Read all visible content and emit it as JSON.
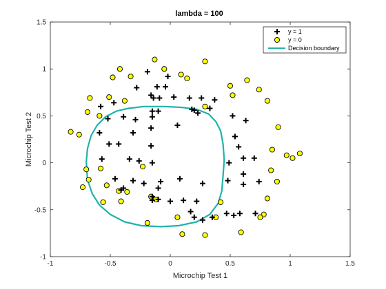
{
  "chart_data": {
    "type": "scatter",
    "title": "lambda = 100",
    "xlabel": "Microchip Test 1",
    "ylabel": "Microchip Test 2",
    "xlim": [
      -1,
      1.5
    ],
    "ylim": [
      -1,
      1.5
    ],
    "xticks": [
      "-1",
      "-0.5",
      "0",
      "0.5",
      "1",
      "1.5"
    ],
    "yticks": [
      "-1",
      "-0.5",
      "0",
      "0.5",
      "1",
      "1.5"
    ],
    "grid": false,
    "legend_position": "top-right",
    "colors": {
      "positive_marker": "#000000",
      "negative_fill": "#ffff00",
      "negative_edge": "#000000",
      "boundary": "#1fb3ab"
    },
    "series": [
      {
        "name": "y = 1",
        "marker": "plus",
        "points": [
          [
            -0.19,
            0.97
          ],
          [
            -0.02,
            0.92
          ],
          [
            -0.28,
            0.8
          ],
          [
            -0.11,
            0.81
          ],
          [
            -0.04,
            0.81
          ],
          [
            -0.58,
            0.6
          ],
          [
            -0.47,
            0.64
          ],
          [
            -0.14,
            0.69
          ],
          [
            -0.16,
            0.72
          ],
          [
            -0.09,
            0.69
          ],
          [
            0.03,
            0.7
          ],
          [
            0.16,
            0.69
          ],
          [
            0.26,
            0.69
          ],
          [
            0.37,
            0.67
          ],
          [
            0.33,
            0.58
          ],
          [
            0.18,
            0.57
          ],
          [
            0.2,
            0.56
          ],
          [
            0.23,
            0.53
          ],
          [
            -0.15,
            0.55
          ],
          [
            -0.1,
            0.55
          ],
          [
            -0.52,
            0.47
          ],
          [
            -0.39,
            0.49
          ],
          [
            -0.29,
            0.46
          ],
          [
            -0.15,
            0.49
          ],
          [
            0.06,
            0.4
          ],
          [
            -0.59,
            0.32
          ],
          [
            -0.31,
            0.32
          ],
          [
            -0.16,
            0.37
          ],
          [
            0.52,
            0.5
          ],
          [
            0.63,
            0.45
          ],
          [
            0.54,
            0.28
          ],
          [
            0.57,
            0.17
          ],
          [
            -0.51,
            0.2
          ],
          [
            -0.43,
            0.2
          ],
          [
            -0.16,
            0.18
          ],
          [
            -0.57,
            0.04
          ],
          [
            -0.34,
            0.04
          ],
          [
            -0.26,
            0.02
          ],
          [
            -0.15,
            0.0
          ],
          [
            0.49,
            0.0
          ],
          [
            0.61,
            0.05
          ],
          [
            0.7,
            0.05
          ],
          [
            -0.46,
            -0.17
          ],
          [
            -0.31,
            -0.19
          ],
          [
            -0.22,
            -0.22
          ],
          [
            -0.08,
            -0.2
          ],
          [
            0.08,
            -0.17
          ],
          [
            0.27,
            -0.22
          ],
          [
            0.48,
            -0.19
          ],
          [
            0.61,
            -0.12
          ],
          [
            0.61,
            -0.23
          ],
          [
            0.74,
            -0.2
          ],
          [
            -0.39,
            -0.27
          ],
          [
            -0.41,
            -0.29
          ],
          [
            -0.1,
            -0.27
          ],
          [
            -0.15,
            -0.36
          ],
          [
            -0.15,
            -0.4
          ],
          [
            -0.1,
            -0.39
          ],
          [
            0.0,
            -0.41
          ],
          [
            0.11,
            -0.4
          ],
          [
            0.22,
            -0.41
          ],
          [
            0.17,
            -0.52
          ],
          [
            0.2,
            -0.58
          ],
          [
            0.27,
            -0.61
          ],
          [
            0.35,
            -0.58
          ],
          [
            0.47,
            -0.54
          ],
          [
            0.53,
            -0.56
          ],
          [
            0.58,
            -0.54
          ],
          [
            0.71,
            -0.54
          ]
        ]
      },
      {
        "name": "y = 0",
        "marker": "circle",
        "points": [
          [
            -0.13,
            1.1
          ],
          [
            -0.42,
            1.0
          ],
          [
            -0.48,
            0.91
          ],
          [
            -0.33,
            0.92
          ],
          [
            -0.05,
            1.0
          ],
          [
            0.09,
            0.94
          ],
          [
            0.14,
            0.9
          ],
          [
            0.29,
            1.08
          ],
          [
            0.5,
            0.82
          ],
          [
            0.52,
            0.72
          ],
          [
            0.64,
            0.88
          ],
          [
            0.74,
            0.78
          ],
          [
            -0.67,
            0.69
          ],
          [
            -0.51,
            0.7
          ],
          [
            -0.38,
            0.66
          ],
          [
            0.29,
            0.6
          ],
          [
            0.81,
            0.66
          ],
          [
            -0.69,
            0.54
          ],
          [
            -0.59,
            0.5
          ],
          [
            0.9,
            0.38
          ],
          [
            -0.83,
            0.33
          ],
          [
            -0.76,
            0.3
          ],
          [
            0.85,
            0.14
          ],
          [
            0.97,
            0.08
          ],
          [
            1.02,
            0.05
          ],
          [
            1.08,
            0.1
          ],
          [
            -0.7,
            -0.07
          ],
          [
            -0.58,
            -0.06
          ],
          [
            -0.23,
            -0.04
          ],
          [
            0.84,
            -0.08
          ],
          [
            -0.68,
            -0.18
          ],
          [
            -0.73,
            -0.26
          ],
          [
            0.89,
            -0.2
          ],
          [
            -0.53,
            -0.24
          ],
          [
            -0.56,
            -0.42
          ],
          [
            -0.43,
            -0.3
          ],
          [
            -0.36,
            -0.31
          ],
          [
            -0.41,
            -0.41
          ],
          [
            -0.16,
            -0.36
          ],
          [
            -0.12,
            -0.39
          ],
          [
            0.42,
            -0.42
          ],
          [
            0.81,
            -0.38
          ],
          [
            0.78,
            -0.55
          ],
          [
            0.06,
            -0.58
          ],
          [
            0.38,
            -0.58
          ],
          [
            0.75,
            -0.58
          ],
          [
            -0.19,
            -0.64
          ],
          [
            0.1,
            -0.76
          ],
          [
            0.29,
            -0.77
          ],
          [
            0.59,
            -0.74
          ]
        ]
      },
      {
        "name": "Decision boundary",
        "marker": "line",
        "points": [
          [
            -0.7,
            0.01
          ],
          [
            -0.69,
            0.15
          ],
          [
            -0.66,
            0.29
          ],
          [
            -0.61,
            0.4
          ],
          [
            -0.54,
            0.49
          ],
          [
            -0.45,
            0.55
          ],
          [
            -0.35,
            0.58
          ],
          [
            -0.22,
            0.6
          ],
          [
            -0.05,
            0.6
          ],
          [
            0.1,
            0.59
          ],
          [
            0.22,
            0.57
          ],
          [
            0.32,
            0.52
          ],
          [
            0.38,
            0.44
          ],
          [
            0.42,
            0.34
          ],
          [
            0.44,
            0.2
          ],
          [
            0.45,
            0.03
          ],
          [
            0.44,
            -0.14
          ],
          [
            0.43,
            -0.3
          ],
          [
            0.4,
            -0.43
          ],
          [
            0.33,
            -0.55
          ],
          [
            0.22,
            -0.63
          ],
          [
            0.07,
            -0.67
          ],
          [
            -0.08,
            -0.68
          ],
          [
            -0.24,
            -0.67
          ],
          [
            -0.38,
            -0.63
          ],
          [
            -0.5,
            -0.55
          ],
          [
            -0.59,
            -0.45
          ],
          [
            -0.65,
            -0.33
          ],
          [
            -0.69,
            -0.18
          ],
          [
            -0.7,
            0.01
          ]
        ]
      }
    ]
  }
}
